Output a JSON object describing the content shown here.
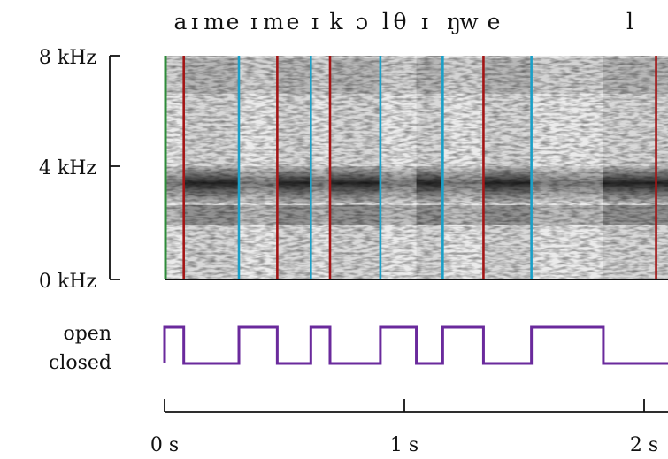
{
  "phonemes": [
    "a",
    "ɪ",
    "m",
    "e",
    "ɪ",
    "m",
    "e",
    "ɪ",
    "k",
    "ɔ",
    "l",
    "θ",
    "ɪ",
    "ŋ",
    "w",
    "e",
    "l"
  ],
  "freq_axis": {
    "labels": [
      "8 kHz",
      "4 kHz",
      "0 kHz"
    ],
    "values_khz": [
      8,
      4,
      0
    ]
  },
  "state_axis": {
    "open_label": "open",
    "closed_label": "closed"
  },
  "time_axis": {
    "labels": [
      "0 s",
      "1 s",
      "2 s"
    ],
    "values_s": [
      0,
      1,
      2
    ],
    "max_s": 2.1
  },
  "markers": {
    "start": {
      "time_s": 0.0,
      "color": "#2e8b3a"
    },
    "open_times_s": [
      0.08,
      0.47,
      0.69,
      1.33,
      2.05
    ],
    "close_times_s": [
      0.31,
      0.61,
      0.9,
      1.16,
      1.53
    ],
    "open_color": "#a31515",
    "close_color": "#1aa0c8"
  },
  "state_signal": {
    "color": "#6a2a9c",
    "segments": [
      {
        "state": "open",
        "start_s": 0.0,
        "end_s": 0.08
      },
      {
        "state": "closed",
        "start_s": 0.08,
        "end_s": 0.31
      },
      {
        "state": "open",
        "start_s": 0.31,
        "end_s": 0.47
      },
      {
        "state": "closed",
        "start_s": 0.47,
        "end_s": 0.61
      },
      {
        "state": "open",
        "start_s": 0.61,
        "end_s": 0.69
      },
      {
        "state": "closed",
        "start_s": 0.69,
        "end_s": 0.9
      },
      {
        "state": "open",
        "start_s": 0.9,
        "end_s": 1.05
      },
      {
        "state": "closed",
        "start_s": 1.05,
        "end_s": 1.16
      },
      {
        "state": "open",
        "start_s": 1.16,
        "end_s": 1.33
      },
      {
        "state": "closed",
        "start_s": 1.33,
        "end_s": 1.53
      },
      {
        "state": "open",
        "start_s": 1.53,
        "end_s": 1.83
      },
      {
        "state": "closed",
        "start_s": 1.83,
        "end_s": 2.1
      }
    ]
  }
}
